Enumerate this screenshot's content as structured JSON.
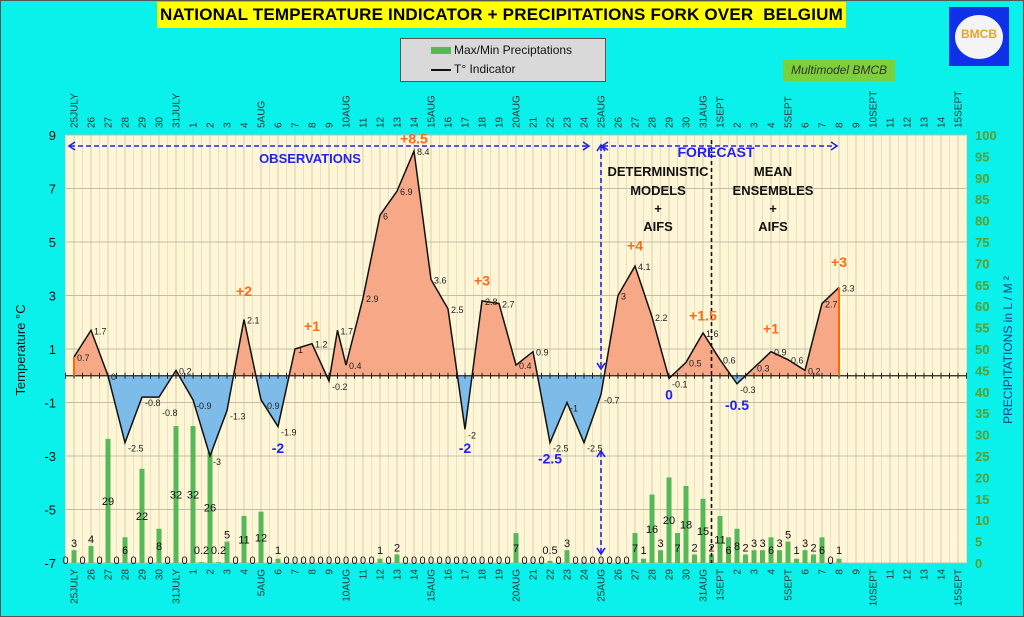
{
  "header": {
    "title": "NATIONAL TEMPERATURE INDICATOR + PRECIPITATIONS FORK OVER  BELGIUM",
    "logo_text": "BMCB",
    "badge": "Multimodel BMCB"
  },
  "legend": {
    "precip": "Max/Min Preciptations",
    "temp": "T° Indicator"
  },
  "colors": {
    "background": "#0af0ea",
    "plot_bg": "#fff6d5",
    "title_bg": "#ffff00",
    "positive_fill": "#f7a887",
    "negative_fill": "#7dbbe8",
    "bars": "#55b95a",
    "positive_text": "#ff6a1a",
    "negative_text": "#2222ee",
    "right_axis_text": "#5a9e2c"
  },
  "chart_data": {
    "type": "bar+area-line",
    "title": "NATIONAL TEMPERATURE INDICATOR + PRECIPITATIONS FORK OVER  BELGIUM",
    "left_axis": {
      "label": "Temperature   °C",
      "range": [
        -7,
        9
      ],
      "ticks": [
        9,
        7,
        5,
        3,
        1,
        -1,
        -3,
        -5,
        -7
      ]
    },
    "right_axis": {
      "label": "PRECIPITATIONS in L / M ²",
      "range": [
        0,
        100
      ],
      "ticks": [
        100,
        95,
        90,
        85,
        80,
        75,
        70,
        65,
        60,
        55,
        50,
        45,
        40,
        35,
        30,
        25,
        20,
        15,
        10,
        5,
        0
      ]
    },
    "x_labels": [
      "25JULY",
      "26",
      "27",
      "28",
      "29",
      "30",
      "31JULY",
      "1",
      "2",
      "3",
      "4",
      "5AUG",
      "6",
      "7",
      "8",
      "9",
      "10AUG",
      "11",
      "12",
      "13",
      "14",
      "15AUG",
      "16",
      "17",
      "18",
      "19",
      "20AUG",
      "21",
      "22",
      "23",
      "24",
      "25AUG",
      "26",
      "27",
      "28",
      "29",
      "30",
      "31AUG",
      "1SEPT",
      "2",
      "3",
      "4",
      "5SEPT",
      "6",
      "7",
      "8",
      "9",
      "10SEPT",
      "11",
      "12",
      "13",
      "14",
      "15SEPT"
    ],
    "grid": true,
    "legend_position": "top-center",
    "temperature": [
      {
        "date": "07-25",
        "t": 0.7
      },
      {
        "date": "07-26",
        "t": 1.7
      },
      {
        "date": "07-27",
        "t": 0
      },
      {
        "date": "07-28",
        "t": -2.5
      },
      {
        "date": "07-29",
        "t": -0.8
      },
      {
        "date": "07-30",
        "t": -0.8
      },
      {
        "date": "07-31",
        "t": 0.2
      },
      {
        "date": "08-01",
        "t": -0.9
      },
      {
        "date": "08-02",
        "t": -3
      },
      {
        "date": "08-03",
        "t": -1.3
      },
      {
        "date": "08-04",
        "t": 2.1
      },
      {
        "date": "08-05",
        "t": -0.9
      },
      {
        "date": "08-06",
        "t": -1.9
      },
      {
        "date": "08-07",
        "t": 1
      },
      {
        "date": "08-08",
        "t": 1.2
      },
      {
        "date": "08-09",
        "t": -0.2
      },
      {
        "date": "08-09 12:00",
        "t": 1.7
      },
      {
        "date": "08-10",
        "t": 0.4
      },
      {
        "date": "08-11",
        "t": 2.9
      },
      {
        "date": "08-12",
        "t": 6
      },
      {
        "date": "08-13",
        "t": 6.9
      },
      {
        "date": "08-14",
        "t": 8.4
      },
      {
        "date": "08-15",
        "t": 3.6
      },
      {
        "date": "08-16",
        "t": 2.5
      },
      {
        "date": "08-17",
        "t": -2
      },
      {
        "date": "08-18",
        "t": 2.8
      },
      {
        "date": "08-19",
        "t": 2.7
      },
      {
        "date": "08-20",
        "t": 0.4
      },
      {
        "date": "08-21",
        "t": 0.9
      },
      {
        "date": "08-22",
        "t": -2.5
      },
      {
        "date": "08-23",
        "t": -1
      },
      {
        "date": "08-24",
        "t": -2.5
      },
      {
        "date": "08-25",
        "t": -0.7
      },
      {
        "date": "08-26",
        "t": 3
      },
      {
        "date": "08-27",
        "t": 4.1
      },
      {
        "date": "08-28",
        "t": 2.2
      },
      {
        "date": "08-29",
        "t": -0.1
      },
      {
        "date": "08-30",
        "t": 0.5
      },
      {
        "date": "08-31",
        "t": 1.6
      },
      {
        "date": "09-01",
        "t": 0.6
      },
      {
        "date": "09-02",
        "t": -0.3
      },
      {
        "date": "09-03",
        "t": 0.3
      },
      {
        "date": "09-04",
        "t": 0.9
      },
      {
        "date": "09-05",
        "t": 0.6
      },
      {
        "date": "09-06",
        "t": 0.2
      },
      {
        "date": "09-07",
        "t": 2.7
      },
      {
        "date": "09-08",
        "t": 3.3
      }
    ],
    "precipitation": [
      [
        "07-24 12:00",
        0
      ],
      [
        "07-25",
        3
      ],
      [
        "07-25 12:00",
        0
      ],
      [
        "07-26",
        4
      ],
      [
        "07-26 12:00",
        0
      ],
      [
        "07-27",
        29
      ],
      [
        "07-27 12:00",
        0
      ],
      [
        "07-28",
        6
      ],
      [
        "07-28 12:00",
        0
      ],
      [
        "07-29",
        22
      ],
      [
        "07-29 12:00",
        0
      ],
      [
        "07-30",
        8
      ],
      [
        "07-30 12:00",
        0
      ],
      [
        "07-31",
        32
      ],
      [
        "07-31 12:00",
        0
      ],
      [
        "08-01",
        32
      ],
      [
        "08-01 12:00",
        0.2
      ],
      [
        "08-02",
        26
      ],
      [
        "08-02 12:00",
        0.2
      ],
      [
        "08-03",
        5
      ],
      [
        "08-03 12:00",
        0
      ],
      [
        "08-04",
        11
      ],
      [
        "08-04 12:00",
        0
      ],
      [
        "08-05",
        12
      ],
      [
        "08-05 12:00",
        0
      ],
      [
        "08-06",
        1
      ],
      [
        "08-06 12:00",
        0
      ],
      [
        "08-07",
        0
      ],
      [
        "08-07 12:00",
        0
      ],
      [
        "08-08",
        0
      ],
      [
        "08-08 12:00",
        0
      ],
      [
        "08-09",
        0
      ],
      [
        "08-09 12:00",
        0
      ],
      [
        "08-10",
        0
      ],
      [
        "08-10 12:00",
        0
      ],
      [
        "08-11",
        0
      ],
      [
        "08-11 12:00",
        0
      ],
      [
        "08-12",
        1
      ],
      [
        "08-12 12:00",
        0
      ],
      [
        "08-13",
        2
      ],
      [
        "08-13 12:00",
        0
      ],
      [
        "08-14",
        0
      ],
      [
        "08-14 12:00",
        0
      ],
      [
        "08-15",
        0
      ],
      [
        "08-15 12:00",
        0
      ],
      [
        "08-16",
        0
      ],
      [
        "08-16 12:00",
        0
      ],
      [
        "08-17",
        0
      ],
      [
        "08-17 12:00",
        0
      ],
      [
        "08-18",
        0
      ],
      [
        "08-18 12:00",
        0
      ],
      [
        "08-19",
        0
      ],
      [
        "08-19 12:00",
        0
      ],
      [
        "08-20",
        7
      ],
      [
        "08-20 12:00",
        0
      ],
      [
        "08-21",
        0
      ],
      [
        "08-21 12:00",
        0
      ],
      [
        "08-22",
        0.5
      ],
      [
        "08-22 12:00",
        0
      ],
      [
        "08-23",
        3
      ],
      [
        "08-23 12:00",
        0
      ],
      [
        "08-24",
        0
      ],
      [
        "08-24 12:00",
        0
      ],
      [
        "08-25",
        0
      ],
      [
        "08-25 12:00",
        0
      ],
      [
        "08-26",
        0
      ],
      [
        "08-26 12:00",
        0
      ],
      [
        "08-27",
        7
      ],
      [
        "08-27 12:00",
        1
      ],
      [
        "08-28",
        16
      ],
      [
        "08-28 12:00",
        3
      ],
      [
        "08-29",
        20
      ],
      [
        "08-29 12:00",
        7
      ],
      [
        "08-30",
        18
      ],
      [
        "08-30 12:00",
        2
      ],
      [
        "08-31",
        15
      ],
      [
        "08-31 12:00",
        2
      ],
      [
        "09-01",
        11
      ],
      [
        "09-01 12:00",
        6
      ],
      [
        "09-02",
        8
      ],
      [
        "09-02 12:00",
        2
      ],
      [
        "09-03",
        3
      ],
      [
        "09-03 12:00",
        3
      ],
      [
        "09-04",
        6
      ],
      [
        "09-04 12:00",
        3
      ],
      [
        "09-05",
        5
      ],
      [
        "09-05 12:00",
        1
      ],
      [
        "09-06",
        3
      ],
      [
        "09-06 12:00",
        2
      ],
      [
        "09-07",
        6
      ],
      [
        "09-07 12:00",
        0
      ],
      [
        "09-08",
        1
      ]
    ],
    "anomaly_labels": [
      {
        "text": "+2",
        "date": "08-04",
        "t": 2.9,
        "kind": "pos"
      },
      {
        "text": "+1",
        "date": "08-08",
        "t": 1.6,
        "kind": "pos"
      },
      {
        "text": "+8.5",
        "date": "08-14",
        "t": 8.6,
        "kind": "pos"
      },
      {
        "text": "+3",
        "date": "08-18",
        "t": 3.3,
        "kind": "pos"
      },
      {
        "text": "+4",
        "date": "08-27",
        "t": 4.6,
        "kind": "pos"
      },
      {
        "text": "+1.5",
        "date": "08-31",
        "t": 2.0,
        "kind": "pos"
      },
      {
        "text": "+1",
        "date": "09-04",
        "t": 1.5,
        "kind": "pos"
      },
      {
        "text": "+3",
        "date": "09-08",
        "t": 4.0,
        "kind": "pos"
      },
      {
        "text": "-2",
        "date": "08-06",
        "t": -2.7,
        "kind": "neg"
      },
      {
        "text": "-2",
        "date": "08-17",
        "t": -2.7,
        "kind": "neg"
      },
      {
        "text": "-2.5",
        "date": "08-22",
        "t": -3.1,
        "kind": "neg"
      },
      {
        "text": "0",
        "date": "08-29",
        "t": -0.7,
        "kind": "neg"
      },
      {
        "text": "-0.5",
        "date": "09-02",
        "t": -1.1,
        "kind": "neg"
      }
    ]
  },
  "annotations": {
    "observations": "OBSERVATIONS",
    "forecast": "FORECAST",
    "deterministic": [
      "DETERMINISTIC",
      "MODELS",
      "+",
      "AIFS"
    ],
    "ensembles": [
      "MEAN",
      "ENSEMBLES",
      "+",
      "AIFS"
    ]
  }
}
